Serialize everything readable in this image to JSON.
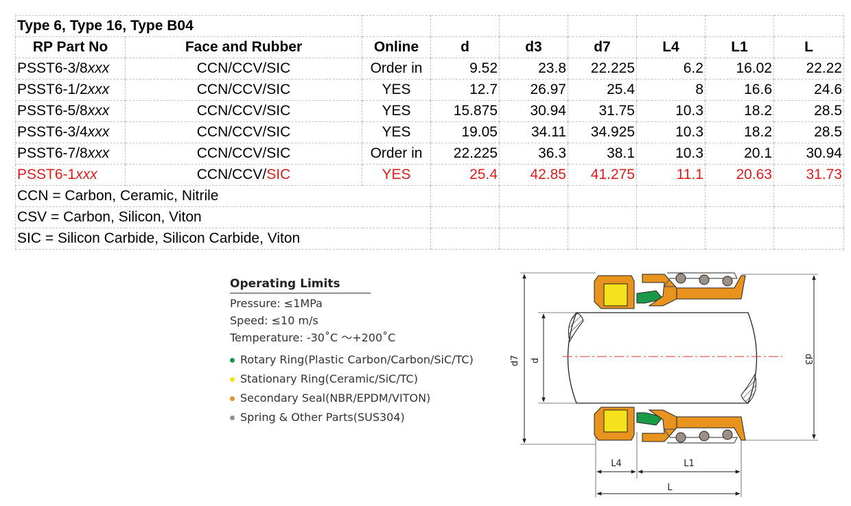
{
  "sheet": {
    "title": "Type 6, Type 16, Type B04",
    "headers": [
      "RP Part No",
      "Face and Rubber",
      "Online",
      "d",
      "d3",
      "d7",
      "L4",
      "L1",
      "L"
    ],
    "rows": [
      {
        "part": "PSST6-3/8",
        "suffix": "xxx",
        "face": "CCN/CCV/SIC",
        "online": "Order in",
        "d": "9.52",
        "d3": "23.8",
        "d7": "22.225",
        "L4": "6.2",
        "L1": "16.02",
        "L": "22.22"
      },
      {
        "part": "PSST6-1/2",
        "suffix": "xxx",
        "face": "CCN/CCV/SIC",
        "online": "YES",
        "d": "12.7",
        "d3": "26.97",
        "d7": "25.4",
        "L4": "8",
        "L1": "16.6",
        "L": "24.6"
      },
      {
        "part": "PSST6-5/8",
        "suffix": "xxx",
        "face": "CCN/CCV/SIC",
        "online": "YES",
        "d": "15.875",
        "d3": "30.94",
        "d7": "31.75",
        "L4": "10.3",
        "L1": "18.2",
        "L": "28.5"
      },
      {
        "part": "PSST6-3/4",
        "suffix": "xxx",
        "face": "CCN/CCV/SIC",
        "online": "YES",
        "d": "19.05",
        "d3": "34.11",
        "d7": "34.925",
        "L4": "10.3",
        "L1": "18.2",
        "L": "28.5"
      },
      {
        "part": "PSST6-7/8",
        "suffix": "xxx",
        "face": "CCN/CCV/SIC",
        "online": "Order in",
        "d": "22.225",
        "d3": "36.3",
        "d7": "38.1",
        "L4": "10.3",
        "L1": "20.1",
        "L": "30.94"
      },
      {
        "part": "PSST6-1",
        "suffix": "xxx",
        "face_plain": "CCN/CCV/",
        "face_red": "SIC",
        "online": "YES",
        "d": "25.4",
        "d3": "42.85",
        "d7": "41.275",
        "L4": "11.1",
        "L1": "20.63",
        "L": "31.73"
      }
    ],
    "notes": [
      "CCN = Carbon, Ceramic, Nitrile",
      "CSV = Carbon, Silicon, Viton",
      "SIC = Silicon Carbide, Silicon Carbide, Viton"
    ],
    "highlight_color": "#e11b1b"
  },
  "limits": {
    "heading": "Operating Limits",
    "items": [
      "Pressure:  ≤1MPa",
      "Speed:  ≤10 m/s",
      "Temperature:  -30˚C ～+200˚C"
    ],
    "legend": [
      {
        "label": "Rotary Ring(Plastic Carbon/Carbon/SiC/TC)",
        "color": "#1a9a48"
      },
      {
        "label": "Stationary Ring(Ceramic/SiC/TC)",
        "color": "#f5e21c"
      },
      {
        "label": "Secondary Seal(NBR/EPDM/VITON)",
        "color": "#e8931e"
      },
      {
        "label": "Spring & Other Parts(SUS304)",
        "color": "#9c8f86"
      }
    ]
  },
  "drawing": {
    "labels": {
      "d7": "d7",
      "d": "d",
      "d3": "d3",
      "L4": "L4",
      "L1": "L1",
      "L": "L"
    }
  }
}
